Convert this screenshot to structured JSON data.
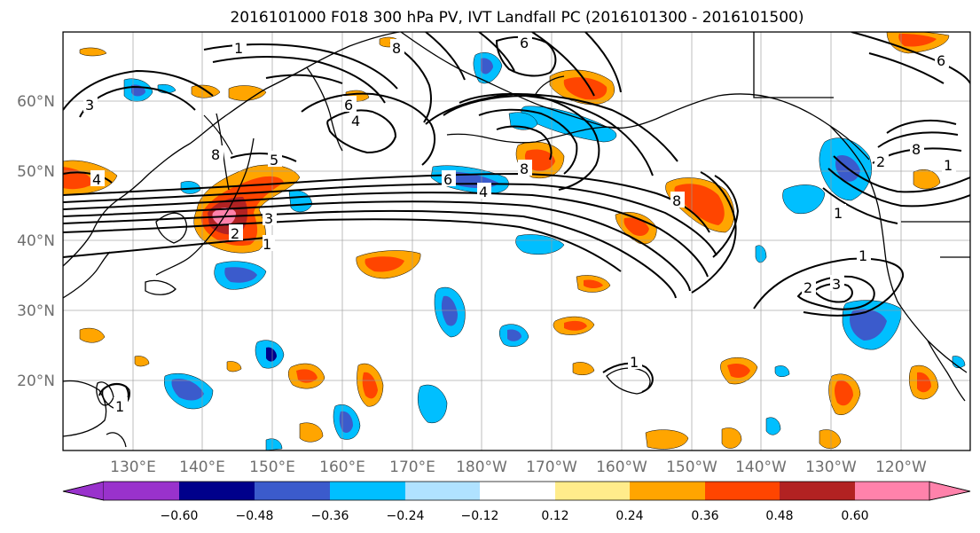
{
  "title": "2016101000 F018 300 hPa PV, IVT Landfall PC (2016101300 - 2016101500)",
  "map": {
    "lon_labels": [
      "130°E",
      "140°E",
      "150°E",
      "160°E",
      "170°E",
      "180°W",
      "170°W",
      "160°W",
      "150°W",
      "140°W",
      "130°W",
      "120°W"
    ],
    "lat_labels": [
      "60°N",
      "50°N",
      "40°N",
      "30°N",
      "20°N"
    ]
  },
  "colorbar": {
    "ticks": [
      "−0.60",
      "−0.48",
      "−0.36",
      "−0.24",
      "−0.12",
      "0.12",
      "0.24",
      "0.36",
      "0.48",
      "0.60"
    ],
    "colors": [
      "#9932cc",
      "#00008b",
      "#3b5bcc",
      "#00bfff",
      "#b0e2ff",
      "#ffffff",
      "#ffec8b",
      "#ffa500",
      "#ff4500",
      "#b22222",
      "#ff82ab"
    ]
  },
  "contour_labels": [
    "1",
    "2",
    "3",
    "4",
    "5",
    "6",
    "8"
  ]
}
